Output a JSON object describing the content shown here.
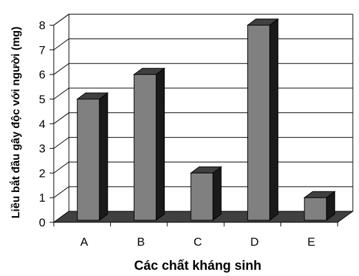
{
  "chart_data": {
    "type": "bar",
    "categories": [
      "A",
      "B",
      "C",
      "D",
      "E"
    ],
    "values": [
      5,
      6,
      2,
      8,
      1
    ],
    "xlabel": "Các chất kháng sinh",
    "ylabel": "Liều bắt đầu gây độc với người (mg)",
    "ylim": [
      0,
      8
    ],
    "yticks": [
      "0",
      "1",
      "2",
      "3",
      "4",
      "5",
      "6",
      "7",
      "8"
    ],
    "grid": true,
    "style": "3d",
    "colors": {
      "bar_front": "#808080",
      "bar_top": "#404040",
      "bar_side": "#1a1a1a",
      "floor": "#404040"
    }
  }
}
